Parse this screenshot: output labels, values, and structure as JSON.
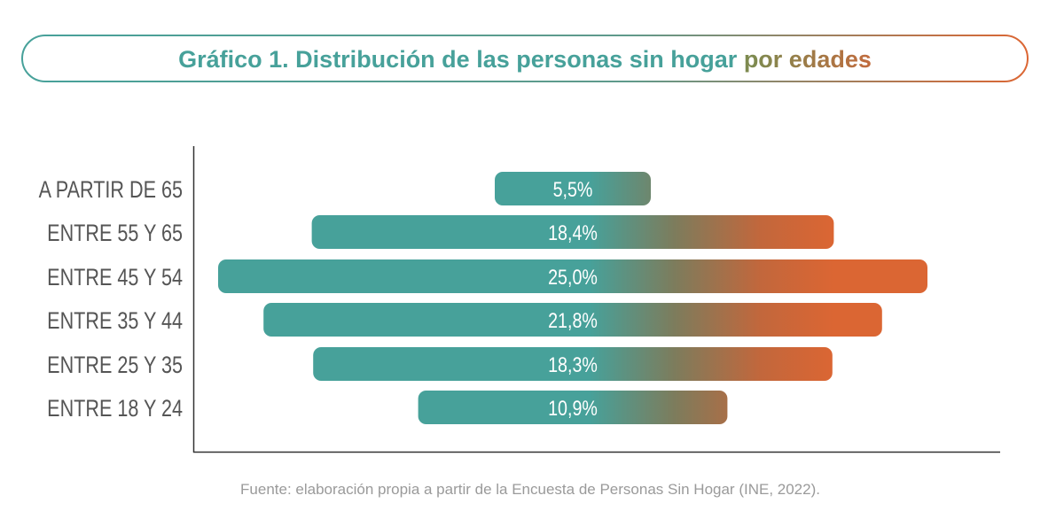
{
  "chart_data": {
    "type": "bar",
    "orientation": "horizontal-centered",
    "title_main": "Gráfico 1. Distribución de las personas sin hogar",
    "title_accent": "por edades",
    "categories": [
      "A PARTIR DE 65",
      "ENTRE 55 Y 65",
      "ENTRE 45 Y 54",
      "ENTRE 35 Y 44",
      "ENTRE 25 Y 35",
      "ENTRE 18 Y 24"
    ],
    "values": [
      5.5,
      18.4,
      25.0,
      21.8,
      18.3,
      10.9
    ],
    "data_labels": [
      "5,5%",
      "18,4%",
      "25,0%",
      "21,8%",
      "18,3%",
      "10,9%"
    ],
    "unit": "%",
    "grid": false,
    "source": "Fuente: elaboración propia a partir de la Encuesta de Personas Sin Hogar (INE, 2022).",
    "colors": {
      "teal": "#47a19a",
      "orange": "#dc6633",
      "label": "#555555",
      "source": "#9a9a9a"
    }
  }
}
